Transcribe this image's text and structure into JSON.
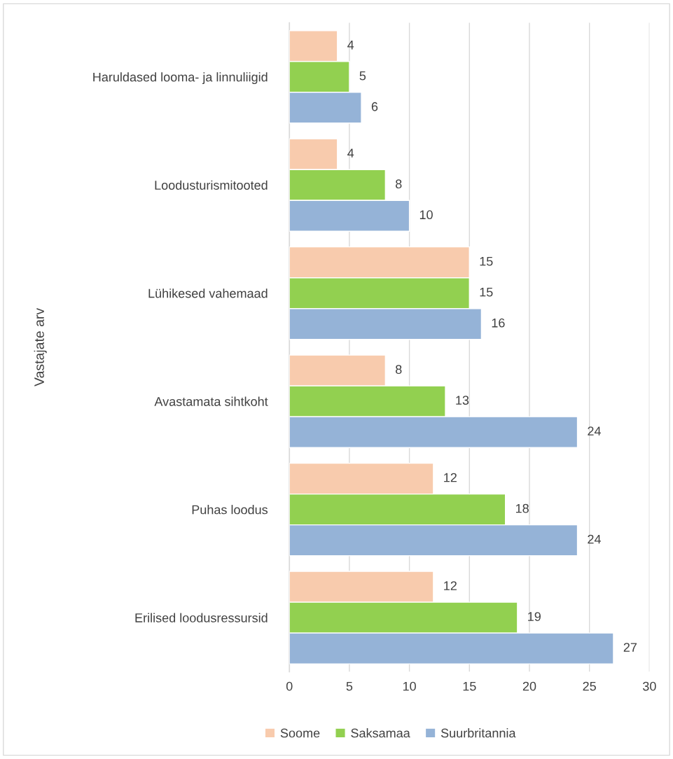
{
  "chart_data": {
    "type": "bar",
    "orientation": "horizontal",
    "ylabel": "Vastajate arv",
    "categories": [
      "Haruldased looma- ja linnuliigid",
      "Loodusturismitooted",
      "Lühikesed vahemaad",
      "Avastamata sihtkoht",
      "Puhas loodus",
      "Erilised loodusressursid"
    ],
    "series": [
      {
        "name": "Soome",
        "color": "#f8cbad",
        "values": [
          4,
          4,
          15,
          8,
          12,
          12
        ]
      },
      {
        "name": "Saksamaa",
        "color": "#92d050",
        "values": [
          5,
          8,
          15,
          13,
          18,
          19
        ]
      },
      {
        "name": "Suurbritannia",
        "color": "#95b3d7",
        "values": [
          6,
          10,
          16,
          24,
          24,
          27
        ]
      }
    ],
    "xlim": [
      0,
      30
    ],
    "xticks": [
      0,
      5,
      10,
      15,
      20,
      25,
      30
    ],
    "grid": "x",
    "legend": "bottom",
    "data_labels": true
  }
}
